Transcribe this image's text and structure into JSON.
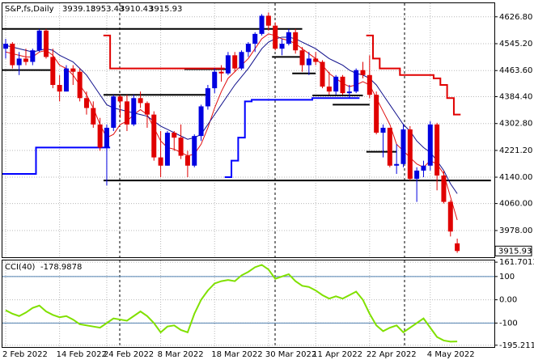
{
  "chart_data": [
    {
      "type": "candlestick",
      "title": "S&P,fs,Daily",
      "categories": [
        "2 Feb 2022",
        null,
        null,
        null,
        null,
        null,
        null,
        null,
        "14 Feb 2022",
        null,
        null,
        null,
        null,
        null,
        null,
        "24 Feb 2022",
        null,
        null,
        null,
        null,
        null,
        null,
        null,
        "8 Mar 2022",
        null,
        null,
        null,
        null,
        null,
        null,
        null,
        "18 Mar 2022",
        null,
        null,
        null,
        null,
        null,
        null,
        null,
        "30 Mar 2022",
        null,
        null,
        null,
        null,
        null,
        null,
        "11 Apr 2022",
        null,
        null,
        null,
        null,
        null,
        null,
        null,
        "22 Apr 2022",
        null,
        null,
        null,
        null,
        null,
        null,
        null,
        null,
        "4 May 2022",
        null,
        null,
        null,
        null
      ],
      "candles": [
        [
          4530,
          4560,
          4500,
          4545
        ],
        [
          4545,
          4550,
          4470,
          4480
        ],
        [
          4480,
          4520,
          4450,
          4500
        ],
        [
          4500,
          4530,
          4480,
          4490
        ],
        [
          4490,
          4530,
          4480,
          4525
        ],
        [
          4525,
          4590,
          4520,
          4585
        ],
        [
          4585,
          4590,
          4500,
          4505
        ],
        [
          4505,
          4530,
          4410,
          4420
        ],
        [
          4420,
          4450,
          4370,
          4400
        ],
        [
          4400,
          4480,
          4400,
          4470
        ],
        [
          4470,
          4480,
          4420,
          4460
        ],
        [
          4460,
          4470,
          4370,
          4380
        ],
        [
          4380,
          4400,
          4330,
          4350
        ],
        [
          4350,
          4370,
          4290,
          4300
        ],
        [
          4300,
          4320,
          4220,
          4230
        ],
        [
          4230,
          4300,
          4115,
          4290
        ],
        [
          4290,
          4390,
          4280,
          4385
        ],
        [
          4385,
          4390,
          4320,
          4370
        ],
        [
          4370,
          4390,
          4280,
          4300
        ],
        [
          4300,
          4390,
          4295,
          4380
        ],
        [
          4380,
          4400,
          4350,
          4365
        ],
        [
          4365,
          4370,
          4290,
          4330
        ],
        [
          4330,
          4340,
          4190,
          4200
        ],
        [
          4200,
          4280,
          4140,
          4175
        ],
        [
          4175,
          4280,
          4175,
          4275
        ],
        [
          4275,
          4280,
          4220,
          4260
        ],
        [
          4260,
          4300,
          4195,
          4205
        ],
        [
          4205,
          4220,
          4140,
          4175
        ],
        [
          4175,
          4270,
          4170,
          4265
        ],
        [
          4265,
          4360,
          4250,
          4355
        ],
        [
          4355,
          4420,
          4345,
          4410
        ],
        [
          4410,
          4470,
          4395,
          4460
        ],
        [
          4460,
          4480,
          4430,
          4455
        ],
        [
          4455,
          4520,
          4450,
          4510
        ],
        [
          4510,
          4520,
          4460,
          4470
        ],
        [
          4470,
          4525,
          4465,
          4520
        ],
        [
          4520,
          4550,
          4505,
          4545
        ],
        [
          4545,
          4580,
          4520,
          4575
        ],
        [
          4575,
          4635,
          4570,
          4630
        ],
        [
          4630,
          4640,
          4585,
          4600
        ],
        [
          4600,
          4610,
          4525,
          4530
        ],
        [
          4530,
          4560,
          4510,
          4545
        ],
        [
          4545,
          4590,
          4540,
          4580
        ],
        [
          4580,
          4590,
          4515,
          4525
        ],
        [
          4525,
          4535,
          4460,
          4480
        ],
        [
          4480,
          4520,
          4450,
          4500
        ],
        [
          4500,
          4520,
          4480,
          4490
        ],
        [
          4490,
          4495,
          4410,
          4415
        ],
        [
          4415,
          4460,
          4390,
          4400
        ],
        [
          4400,
          4450,
          4390,
          4445
        ],
        [
          4445,
          4450,
          4390,
          4395
        ],
        [
          4395,
          4420,
          4380,
          4400
        ],
        [
          4400,
          4470,
          4395,
          4465
        ],
        [
          4465,
          4490,
          4440,
          4450
        ],
        [
          4450,
          4510,
          4380,
          4390
        ],
        [
          4390,
          4400,
          4270,
          4275
        ],
        [
          4275,
          4300,
          4200,
          4290
        ],
        [
          4290,
          4290,
          4170,
          4175
        ],
        [
          4175,
          4240,
          4150,
          4180
        ],
        [
          4180,
          4300,
          4170,
          4285
        ],
        [
          4285,
          4295,
          4130,
          4135
        ],
        [
          4135,
          4170,
          4065,
          4160
        ],
        [
          4160,
          4190,
          4140,
          4175
        ],
        [
          4175,
          4310,
          4160,
          4300
        ],
        [
          4300,
          4305,
          4100,
          4145
        ],
        [
          4145,
          4160,
          4060,
          4065
        ],
        [
          4065,
          4070,
          3960,
          3975
        ],
        [
          3939.18,
          3953.43,
          3910.43,
          3915.93
        ]
      ],
      "up_color": "#0000e0",
      "down_color": "#e00000",
      "overlays": [
        {
          "color": "#e01010",
          "width": 1,
          "step": false,
          "values": [
            4520,
            4515,
            4510,
            4505,
            4505,
            4520,
            4525,
            4510,
            4480,
            4470,
            4450,
            4420,
            4390,
            4350,
            4300,
            4260,
            4270,
            4300,
            4310,
            4330,
            4345,
            4330,
            4290,
            4250,
            4230,
            4225,
            4215,
            4205,
            4210,
            4240,
            4290,
            4350,
            4400,
            4440,
            4460,
            4480,
            4500,
            4530,
            4560,
            4575,
            4570,
            4560,
            4555,
            4545,
            4530,
            4515,
            4500,
            4480,
            4455,
            4440,
            4425,
            4415,
            4420,
            4430,
            4420,
            4380,
            4340,
            4300,
            4240,
            4220,
            4200,
            4180,
            4170,
            4190,
            4180,
            4150,
            4080,
            4010
          ]
        },
        {
          "color": "#10108c",
          "width": 1,
          "step": false,
          "values": [
            4540,
            4535,
            4530,
            4525,
            4520,
            4525,
            4530,
            4525,
            4510,
            4500,
            4490,
            4470,
            4450,
            4420,
            4390,
            4360,
            4350,
            4345,
            4340,
            4335,
            4330,
            4325,
            4310,
            4295,
            4285,
            4275,
            4265,
            4255,
            4260,
            4270,
            4300,
            4330,
            4360,
            4390,
            4420,
            4445,
            4470,
            4500,
            4530,
            4550,
            4560,
            4565,
            4565,
            4560,
            4550,
            4540,
            4530,
            4515,
            4500,
            4490,
            4480,
            4465,
            4455,
            4450,
            4440,
            4420,
            4390,
            4360,
            4330,
            4300,
            4280,
            4250,
            4230,
            4215,
            4190,
            4160,
            4120,
            4090
          ]
        },
        {
          "color": "#e00000",
          "width": 2,
          "step": true,
          "values": [
            null,
            null,
            null,
            null,
            null,
            null,
            null,
            null,
            null,
            null,
            null,
            null,
            null,
            null,
            null,
            4570,
            4470,
            4470,
            4470,
            4470,
            4470,
            4470,
            4470,
            4470,
            4470,
            4470,
            4470,
            4470,
            4470,
            4470,
            4470,
            4470,
            4470,
            null,
            null,
            null,
            null,
            null,
            null,
            null,
            null,
            null,
            null,
            null,
            null,
            null,
            null,
            null,
            null,
            null,
            null,
            null,
            null,
            null,
            4570,
            4500,
            4470,
            4470,
            4470,
            4450,
            4450,
            4450,
            4450,
            4450,
            4440,
            4420,
            4380,
            4330
          ]
        },
        {
          "color": "#0000ff",
          "width": 2,
          "step": true,
          "values": [
            4150,
            4150,
            4150,
            4150,
            4150,
            4230,
            4230,
            4230,
            4230,
            4230,
            4230,
            4230,
            4230,
            4230,
            4230,
            4230,
            null,
            null,
            null,
            null,
            null,
            null,
            null,
            null,
            null,
            null,
            null,
            null,
            null,
            null,
            null,
            null,
            null,
            4140,
            4190,
            4260,
            4370,
            4375,
            4375,
            4375,
            4375,
            4375,
            4375,
            4375,
            4375,
            4375,
            4380,
            4380,
            4380,
            4380,
            4380,
            4380,
            4380,
            null,
            null,
            null,
            null,
            null,
            null,
            null,
            null,
            null,
            null,
            null,
            null,
            null,
            null,
            null
          ]
        }
      ],
      "levels": [
        4590,
        4465,
        4468,
        4390,
        4505,
        4455,
        4388,
        4360,
        4217,
        4130
      ],
      "level_color": "#000000",
      "ylim": [
        3897,
        4668
      ],
      "yticks": [
        {
          "value": 4626.8,
          "label": "4626.80"
        },
        {
          "value": 4545.2,
          "label": "4545.20"
        },
        {
          "value": 4463.6,
          "label": "4463.60"
        },
        {
          "value": 4384.4,
          "label": "4384.40"
        },
        {
          "value": 4302.8,
          "label": "4302.80"
        },
        {
          "value": 4221.2,
          "label": "4221.20"
        },
        {
          "value": 4140,
          "label": "4140.00"
        },
        {
          "value": 4060,
          "label": "4060.00"
        },
        {
          "value": 3978,
          "label": "3978.00"
        }
      ],
      "grid": true
    },
    {
      "type": "line",
      "title": "CCI(40)",
      "values": [
        -45,
        -60,
        -70,
        -55,
        -35,
        -25,
        -50,
        -65,
        -75,
        -70,
        -85,
        -105,
        -110,
        -115,
        -120,
        -100,
        -80,
        -85,
        -90,
        -70,
        -50,
        -70,
        -100,
        -140,
        -115,
        -110,
        -130,
        -140,
        -60,
        0,
        40,
        70,
        80,
        85,
        80,
        105,
        120,
        140,
        150,
        130,
        90,
        100,
        110,
        80,
        60,
        55,
        40,
        20,
        5,
        15,
        5,
        20,
        35,
        0,
        -60,
        -110,
        -135,
        -120,
        -110,
        -140,
        -120,
        -100,
        -80,
        -120,
        -160,
        -175,
        -180,
        -178.9878
      ],
      "color": "#80e000",
      "levels": [
        100,
        -100
      ],
      "level_color": "#5080b0",
      "ylim": [
        -203,
        169
      ],
      "yticks": [
        {
          "value": 161.7013,
          "label": "161.7013"
        },
        100,
        {
          "value": 0,
          "label": "0.00"
        },
        -100,
        {
          "value": -195.2111,
          "label": "-195.2111"
        }
      ],
      "grid": true
    }
  ]
}
